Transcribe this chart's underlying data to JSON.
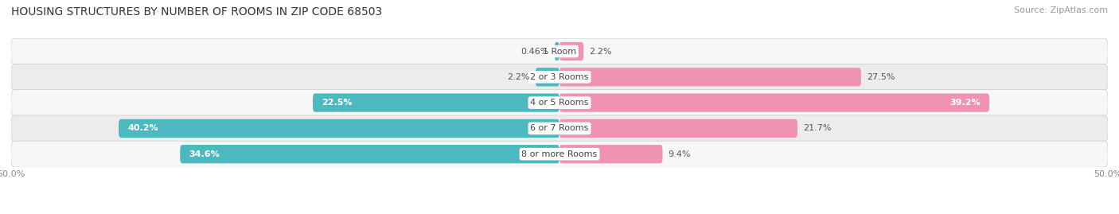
{
  "title": "HOUSING STRUCTURES BY NUMBER OF ROOMS IN ZIP CODE 68503",
  "source": "Source: ZipAtlas.com",
  "categories": [
    "1 Room",
    "2 or 3 Rooms",
    "4 or 5 Rooms",
    "6 or 7 Rooms",
    "8 or more Rooms"
  ],
  "owner_values": [
    0.46,
    2.2,
    22.5,
    40.2,
    34.6
  ],
  "renter_values": [
    2.2,
    27.5,
    39.2,
    21.7,
    9.4
  ],
  "owner_color": "#4db8c0",
  "renter_color": "#f093b0",
  "row_bg_color_odd": "#f7f7f7",
  "row_bg_color_even": "#ececec",
  "xlim": [
    -50,
    50
  ],
  "title_fontsize": 10,
  "source_fontsize": 8,
  "bar_height": 0.72,
  "figsize": [
    14.06,
    2.69
  ],
  "dpi": 100,
  "label_fontsize": 8,
  "cat_fontsize": 8
}
